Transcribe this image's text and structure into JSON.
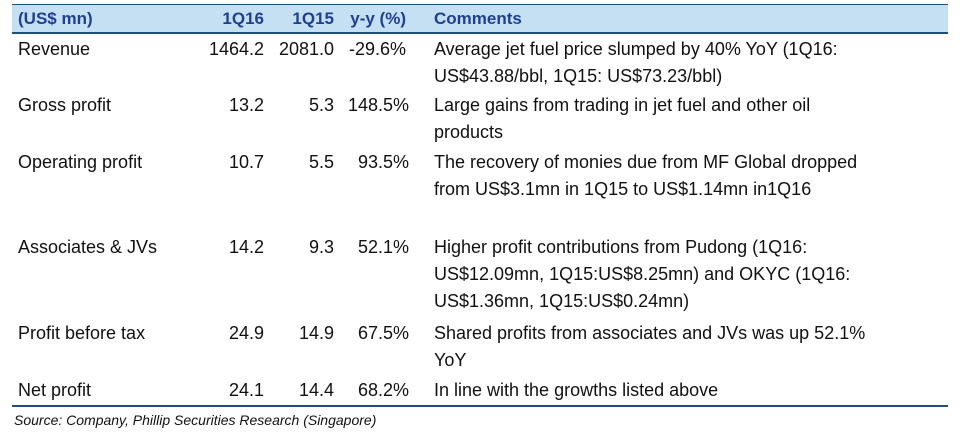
{
  "table": {
    "headers": {
      "label": "(US$ mn)",
      "q16": "1Q16",
      "q15": "1Q15",
      "yy": "y-y (%)",
      "comments": "Comments"
    },
    "rows": [
      {
        "label": "Revenue",
        "q16": "1464.2",
        "q15": "2081.0",
        "yy": "-29.6%",
        "comment_lines": [
          "Average jet fuel price slumped by 40% YoY (1Q16:",
          "US$43.88/bbl, 1Q15: US$73.23/bbl)"
        ]
      },
      {
        "label": "Gross profit",
        "q16": "13.2",
        "q15": "5.3",
        "yy": "148.5%",
        "comment_lines": [
          "Large gains from trading in jet fuel and other oil",
          "products"
        ]
      },
      {
        "label": "Operating profit",
        "q16": "10.7",
        "q15": "5.5",
        "yy": "93.5%",
        "comment_lines": [
          "The recovery of monies due from MF Global dropped",
          "from US$3.1mn in 1Q15 to US$1.14mn in1Q16"
        ]
      },
      {
        "label": "Associates & JVs",
        "q16": "14.2",
        "q15": "9.3",
        "yy": "52.1%",
        "comment_lines": [
          "Higher profit contributions from Pudong (1Q16:",
          "US$12.09mn, 1Q15:US$8.25mn) and OKYC (1Q16:",
          "US$1.36mn, 1Q15:US$0.24mn)"
        ]
      },
      {
        "label": "Profit before tax",
        "q16": "24.9",
        "q15": "14.9",
        "yy": "67.5%",
        "comment_lines": [
          "Shared profits from associates and JVs was up 52.1%",
          "YoY"
        ]
      },
      {
        "label": "Net profit",
        "q16": "24.1",
        "q15": "14.4",
        "yy": "68.2%",
        "comment_lines": [
          "In line with the growths listed above"
        ]
      }
    ]
  },
  "source": "Source: Company, Phillip Securities Research (Singapore)",
  "colors": {
    "header_bg": "#c6e0f3",
    "header_text": "#1f3f93",
    "rule": "#1f4e79"
  }
}
